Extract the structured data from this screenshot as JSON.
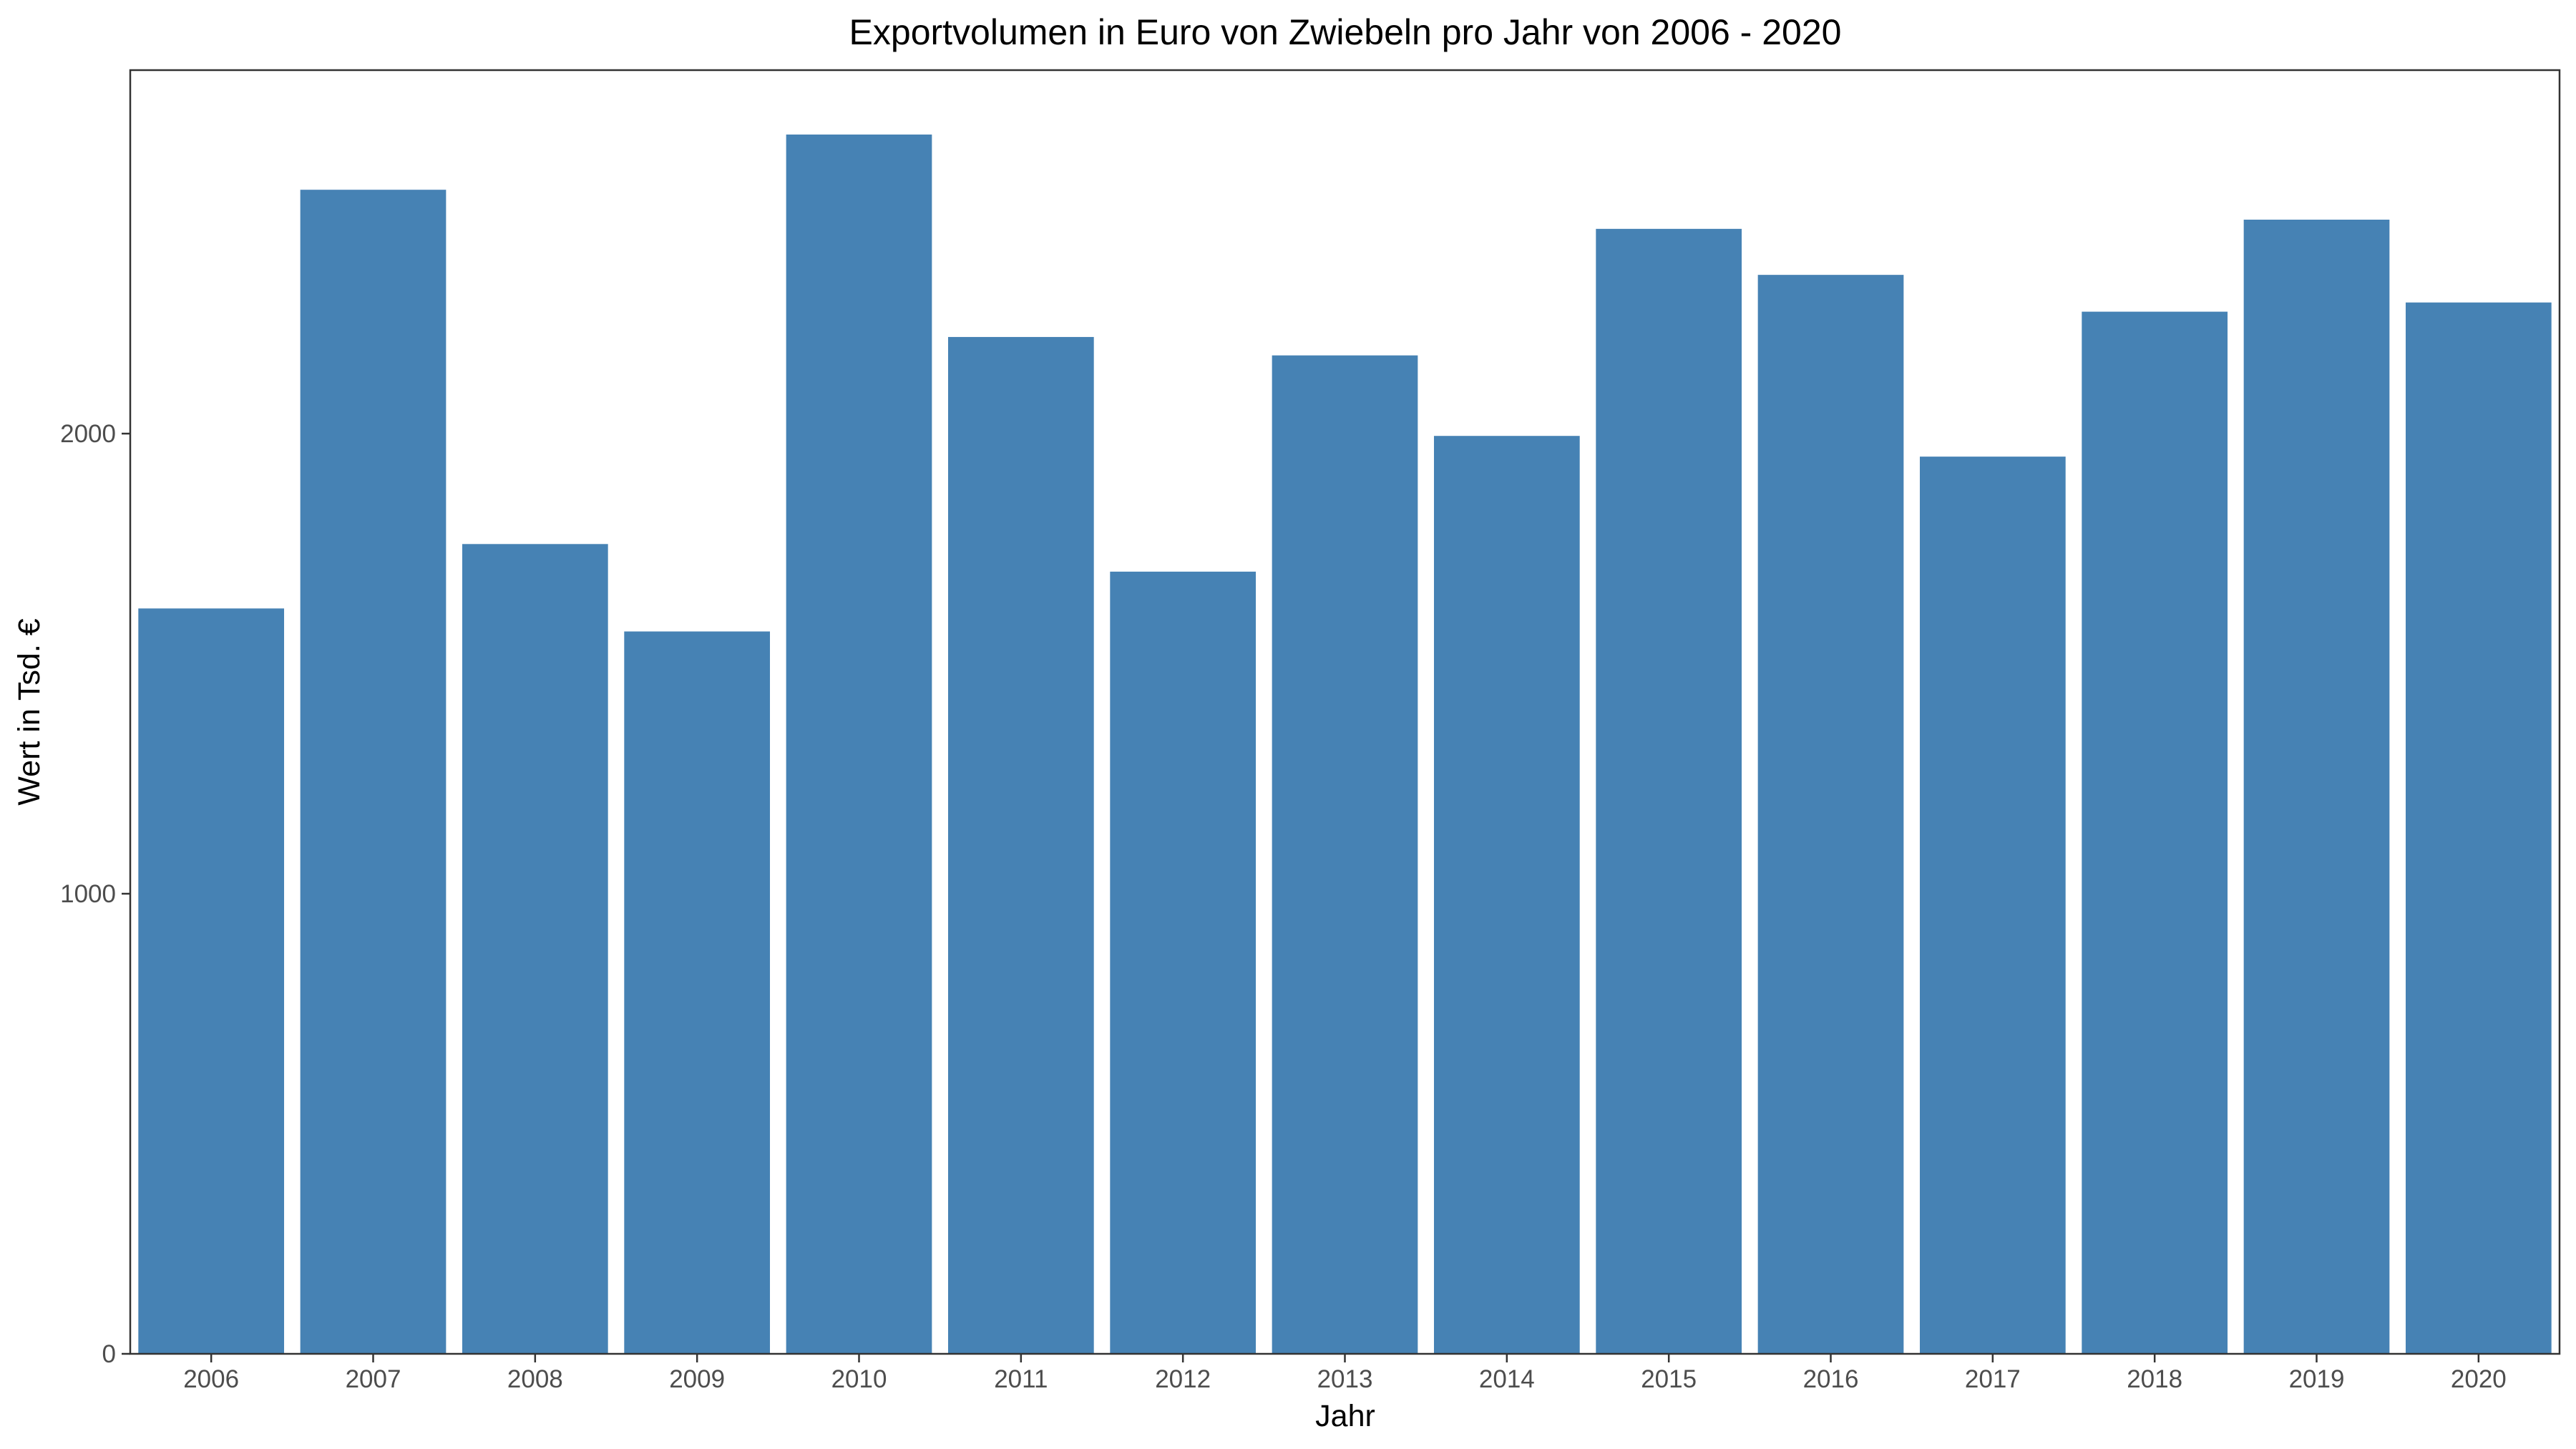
{
  "chart_data": {
    "type": "bar",
    "title": "Exportvolumen in Euro von Zwiebeln pro Jahr von 2006 - 2020",
    "xlabel": "Jahr",
    "ylabel": "Wert in Tsd. €",
    "categories": [
      "2006",
      "2007",
      "2008",
      "2009",
      "2010",
      "2011",
      "2012",
      "2013",
      "2014",
      "2015",
      "2016",
      "2017",
      "2018",
      "2019",
      "2020"
    ],
    "values": [
      1620,
      2530,
      1760,
      1570,
      2650,
      2210,
      1700,
      2170,
      1995,
      2445,
      2345,
      1950,
      2265,
      2465,
      2285
    ],
    "ylim": [
      0,
      2790
    ],
    "yticks": [
      0,
      1000,
      2000
    ],
    "ytick_labels": [
      "0",
      "1000",
      "2000"
    ],
    "bar_color": "#4682B4",
    "grid": false,
    "legend": false
  }
}
